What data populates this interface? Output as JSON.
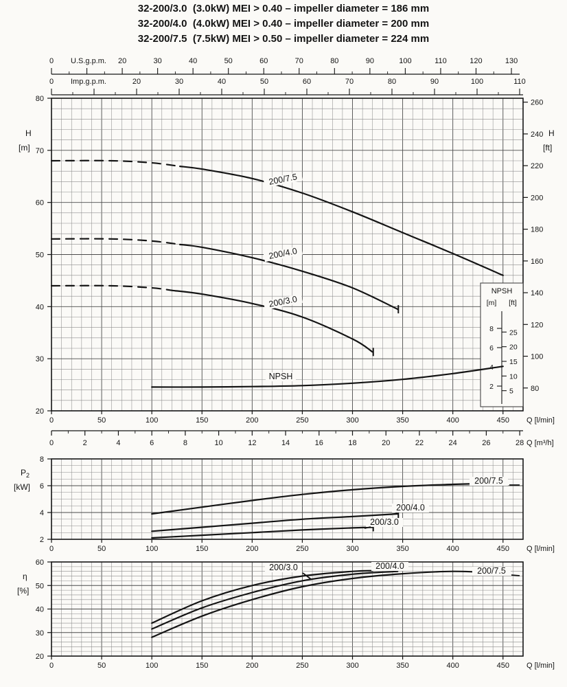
{
  "title_lines": [
    "32-200/3.0  (3.0kW) MEI > 0.40 – impeller diameter = 186 mm",
    "32-200/4.0  (4.0kW) MEI > 0.40 – impeller diameter = 200 mm",
    "32-200/7.5  (7.5kW) MEI > 0.50 – impeller diameter = 224 mm"
  ],
  "colors": {
    "ink": "#141414",
    "grid_minor": "#8c8c8c",
    "grid_major": "#4a4a4a",
    "paper": "#fbfaf7"
  },
  "chart_data": [
    {
      "id": "head-chart",
      "type": "line",
      "title": "Head H vs flow Q with NPSH curve",
      "x_axis": {
        "label": "Q [l/min]",
        "min": 0,
        "max": 470,
        "major_ticks": [
          0,
          50,
          100,
          150,
          200,
          250,
          300,
          350,
          400,
          450
        ],
        "minor_step": 10
      },
      "x_axis_top": [
        {
          "label": "U.S.g.p.m.",
          "ticks": [
            0,
            20,
            30,
            40,
            50,
            60,
            70,
            80,
            90,
            100,
            110,
            120,
            130
          ]
        },
        {
          "label": "Imp.g.p.m.",
          "ticks": [
            0,
            20,
            30,
            40,
            50,
            60,
            70,
            80,
            90,
            100,
            110
          ]
        }
      ],
      "x_axis_bottom_secondary": {
        "label": "Q [m³/h]",
        "ticks": [
          0,
          2,
          4,
          6,
          8,
          10,
          12,
          14,
          16,
          18,
          20,
          22,
          24,
          26,
          28
        ]
      },
      "y_axis_left": {
        "label_lines": [
          "H",
          "[m]"
        ],
        "min": 20,
        "max": 80,
        "ticks": [
          20,
          30,
          40,
          50,
          60,
          70,
          80
        ],
        "minor_step": 2
      },
      "y_axis_right": {
        "label_lines": [
          "H",
          "[ft]"
        ],
        "ticks": [
          80,
          100,
          120,
          140,
          160,
          180,
          200,
          220,
          240,
          260
        ]
      },
      "npsh_scale": {
        "header": "NPSH",
        "units": [
          "[m]",
          "[ft]"
        ],
        "m_ticks": [
          2,
          4,
          6,
          8
        ],
        "ft_ticks": [
          5,
          10,
          15,
          20,
          25
        ]
      },
      "series": [
        {
          "name": "200/7.5",
          "unit": "m",
          "dashed_below_q": 128,
          "points": [
            [
              0,
              68
            ],
            [
              60,
              68
            ],
            [
              100,
              67.6
            ],
            [
              150,
              66.4
            ],
            [
              200,
              64.6
            ],
            [
              250,
              61.8
            ],
            [
              300,
              58.2
            ],
            [
              350,
              54.2
            ],
            [
              400,
              50.2
            ],
            [
              450,
              46
            ]
          ]
        },
        {
          "name": "200/4.0",
          "unit": "m",
          "dashed_below_q": 128,
          "end_tick": true,
          "points": [
            [
              0,
              53
            ],
            [
              60,
              53
            ],
            [
              100,
              52.6
            ],
            [
              150,
              51.4
            ],
            [
              200,
              49.4
            ],
            [
              250,
              46.8
            ],
            [
              300,
              43.6
            ],
            [
              345,
              39.5
            ]
          ]
        },
        {
          "name": "200/3.0",
          "unit": "m",
          "dashed_below_q": 120,
          "end_tick": true,
          "points": [
            [
              0,
              44
            ],
            [
              60,
              44
            ],
            [
              100,
              43.6
            ],
            [
              150,
              42.4
            ],
            [
              200,
              40.6
            ],
            [
              250,
              38
            ],
            [
              300,
              33.8
            ],
            [
              320,
              31.3
            ]
          ]
        },
        {
          "name": "NPSH",
          "unit": "m NPSH",
          "points": [
            [
              100,
              1.9
            ],
            [
              150,
              1.9
            ],
            [
              200,
              1.95
            ],
            [
              250,
              2.05
            ],
            [
              300,
              2.3
            ],
            [
              350,
              2.7
            ],
            [
              400,
              3.3
            ],
            [
              450,
              4.05
            ]
          ]
        }
      ]
    },
    {
      "id": "power-chart",
      "type": "line",
      "title": "Shaft power P2 vs flow Q",
      "x_axis": {
        "label": "Q [l/min]",
        "min": 0,
        "max": 470,
        "major_ticks": [
          0,
          50,
          100,
          150,
          200,
          250,
          300,
          350,
          400,
          450
        ],
        "minor_step": 10
      },
      "y_axis_left": {
        "label_lines": [
          "P2",
          "[kW]"
        ],
        "min": 2,
        "max": 8,
        "ticks": [
          2,
          4,
          6,
          8
        ],
        "minor_step": 0.5
      },
      "series": [
        {
          "name": "200/7.5",
          "points": [
            [
              100,
              3.9
            ],
            [
              150,
              4.4
            ],
            [
              200,
              4.9
            ],
            [
              250,
              5.35
            ],
            [
              300,
              5.7
            ],
            [
              350,
              5.95
            ],
            [
              400,
              6.1
            ],
            [
              450,
              6.2
            ]
          ]
        },
        {
          "name": "200/4.0",
          "end_tick": true,
          "points": [
            [
              100,
              2.6
            ],
            [
              150,
              2.9
            ],
            [
              200,
              3.2
            ],
            [
              250,
              3.5
            ],
            [
              300,
              3.7
            ],
            [
              345,
              3.9
            ]
          ]
        },
        {
          "name": "200/3.0",
          "end_tick": true,
          "points": [
            [
              100,
              2.1
            ],
            [
              150,
              2.3
            ],
            [
              200,
              2.5
            ],
            [
              250,
              2.7
            ],
            [
              300,
              2.85
            ],
            [
              320,
              2.9
            ]
          ]
        }
      ]
    },
    {
      "id": "efficiency-chart",
      "type": "line",
      "title": "Efficiency η vs flow Q",
      "x_axis": {
        "label": "Q [l/min]",
        "min": 0,
        "max": 470,
        "major_ticks": [
          0,
          50,
          100,
          150,
          200,
          250,
          300,
          350,
          400,
          450
        ],
        "minor_step": 10
      },
      "y_axis_left": {
        "label_lines": [
          "η",
          "[%]"
        ],
        "min": 20,
        "max": 60,
        "ticks": [
          20,
          30,
          40,
          50,
          60
        ],
        "minor_step": 2
      },
      "series": [
        {
          "name": "200/3.0",
          "points": [
            [
              100,
              34
            ],
            [
              150,
              43.5
            ],
            [
              200,
              50
            ],
            [
              250,
              54
            ],
            [
              300,
              56
            ],
            [
              320,
              56.3
            ]
          ]
        },
        {
          "name": "200/4.0",
          "points": [
            [
              100,
              31.5
            ],
            [
              150,
              40.5
            ],
            [
              200,
              47
            ],
            [
              250,
              52
            ],
            [
              300,
              54.8
            ],
            [
              345,
              56
            ]
          ]
        },
        {
          "name": "200/7.5",
          "points": [
            [
              100,
              28
            ],
            [
              150,
              37
            ],
            [
              200,
              44
            ],
            [
              250,
              49.5
            ],
            [
              300,
              53
            ],
            [
              350,
              55
            ],
            [
              400,
              56
            ],
            [
              450,
              55.3
            ]
          ]
        }
      ]
    }
  ]
}
